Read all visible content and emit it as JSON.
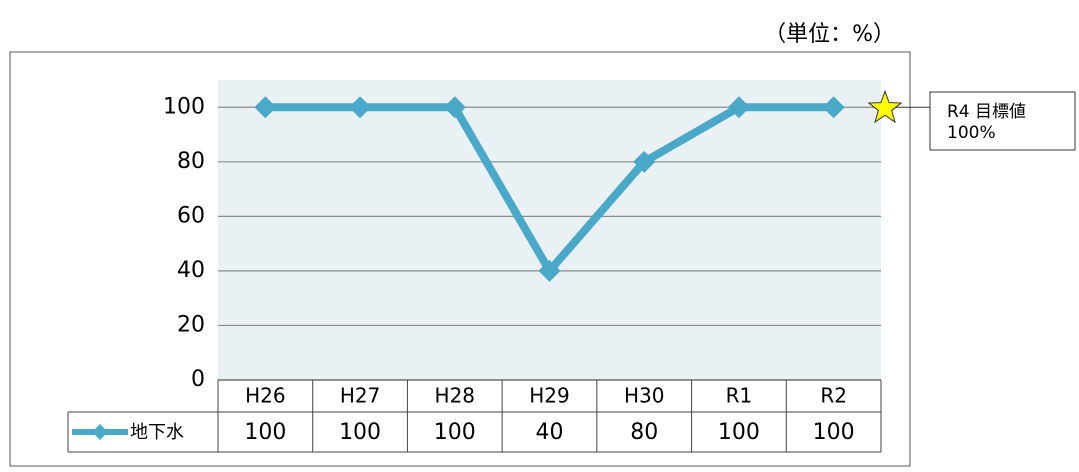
{
  "chart_data": {
    "type": "line",
    "unit_label": "（単位：%）",
    "categories": [
      "H26",
      "H27",
      "H28",
      "H29",
      "H30",
      "R1",
      "R2"
    ],
    "series": [
      {
        "name": "地下水",
        "color": "#4aa9c9",
        "values": [
          100,
          100,
          100,
          40,
          80,
          100,
          100
        ]
      }
    ],
    "ylim": [
      0,
      110
    ],
    "yticks": [
      0,
      20,
      40,
      60,
      80,
      100
    ],
    "grid": true,
    "target": {
      "label": "R4 目標値",
      "value": 100,
      "value_label": "100%"
    }
  }
}
